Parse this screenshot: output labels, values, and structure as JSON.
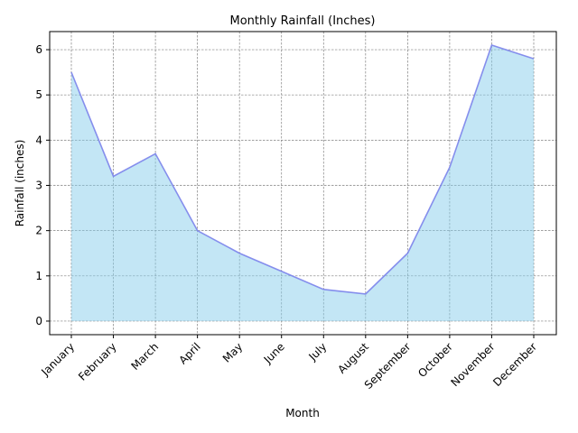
{
  "chart_data": {
    "type": "area",
    "title": "Monthly Rainfall (Inches)",
    "xlabel": "Month",
    "ylabel": "Rainfall (inches)",
    "categories": [
      "January",
      "February",
      "March",
      "April",
      "May",
      "June",
      "July",
      "August",
      "September",
      "October",
      "November",
      "December"
    ],
    "values": [
      5.5,
      3.2,
      3.7,
      2.0,
      1.5,
      1.1,
      0.7,
      0.6,
      1.5,
      3.4,
      6.1,
      5.8
    ],
    "ylim": [
      -0.3,
      6.4
    ],
    "yticks": [
      "0",
      "1",
      "2",
      "3",
      "4",
      "5",
      "6"
    ],
    "grid": true,
    "fill_color": "#87ceeb",
    "line_color": "#7b83eb"
  }
}
